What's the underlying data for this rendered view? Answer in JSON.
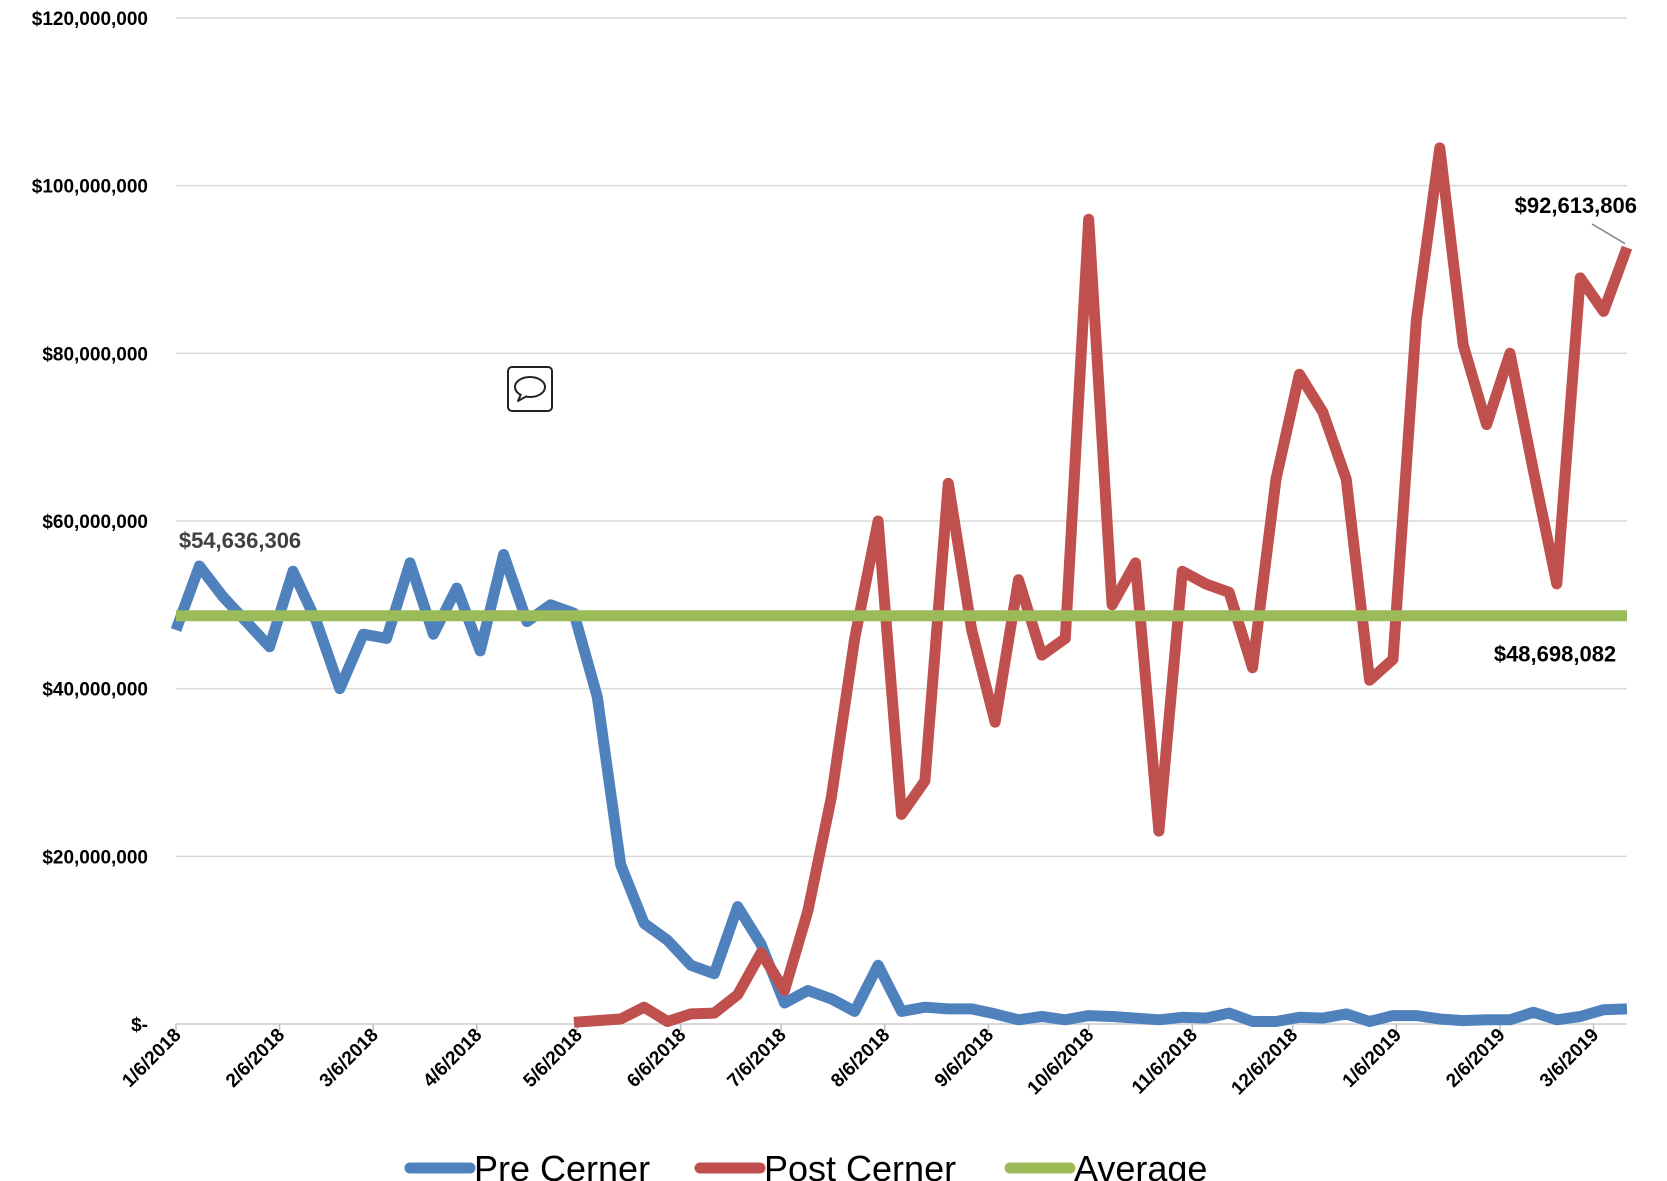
{
  "colors": {
    "pre": "#4F81BD",
    "post": "#C0504D",
    "average": "#9BBB59",
    "grid": "#D9D9D9",
    "annotation_grey": "#404040"
  },
  "icons": {
    "comment": "speech-bubble-icon"
  },
  "chart_data": {
    "type": "line",
    "title": "",
    "xlabel": "",
    "ylabel": "",
    "ylim": [
      0,
      120000000
    ],
    "y_ticks": [
      0,
      20000000,
      40000000,
      60000000,
      80000000,
      100000000,
      120000000
    ],
    "y_tick_labels": [
      "$-",
      "$20,000,000",
      "$40,000,000",
      "$60,000,000",
      "$80,000,000",
      "$100,000,000",
      "$120,000,000"
    ],
    "x_tick_labels": [
      "1/6/2018",
      "2/6/2018",
      "3/6/2018",
      "4/6/2018",
      "5/6/2018",
      "6/6/2018",
      "7/6/2018",
      "8/6/2018",
      "9/6/2018",
      "10/6/2018",
      "11/6/2018",
      "12/6/2018",
      "1/6/2019",
      "2/6/2019",
      "3/6/2019"
    ],
    "grid": "horizontal",
    "legend_position": "bottom",
    "series": [
      {
        "name": "Pre Cerner",
        "color_key": "pre",
        "points": [
          [
            "2018-01-06",
            47000000
          ],
          [
            "2018-01-13",
            54636306
          ],
          [
            "2018-01-20",
            51000000
          ],
          [
            "2018-01-27",
            48000000
          ],
          [
            "2018-02-03",
            45000000
          ],
          [
            "2018-02-10",
            54000000
          ],
          [
            "2018-02-17",
            48000000
          ],
          [
            "2018-02-24",
            40000000
          ],
          [
            "2018-03-03",
            46500000
          ],
          [
            "2018-03-10",
            46000000
          ],
          [
            "2018-03-17",
            55000000
          ],
          [
            "2018-03-24",
            46500000
          ],
          [
            "2018-03-31",
            52000000
          ],
          [
            "2018-04-07",
            44500000
          ],
          [
            "2018-04-14",
            56000000
          ],
          [
            "2018-04-21",
            48000000
          ],
          [
            "2018-04-28",
            50000000
          ],
          [
            "2018-05-05",
            49000000
          ],
          [
            "2018-05-12",
            39000000
          ],
          [
            "2018-05-19",
            19000000
          ],
          [
            "2018-05-26",
            12000000
          ],
          [
            "2018-06-02",
            10000000
          ],
          [
            "2018-06-09",
            7000000
          ],
          [
            "2018-06-16",
            6000000
          ],
          [
            "2018-06-23",
            14000000
          ],
          [
            "2018-06-30",
            9500000
          ],
          [
            "2018-07-07",
            2500000
          ],
          [
            "2018-07-14",
            4000000
          ],
          [
            "2018-07-21",
            3000000
          ],
          [
            "2018-07-28",
            1500000
          ],
          [
            "2018-08-04",
            7000000
          ],
          [
            "2018-08-11",
            1500000
          ],
          [
            "2018-08-18",
            2000000
          ],
          [
            "2018-08-25",
            1800000
          ],
          [
            "2018-09-01",
            1800000
          ],
          [
            "2018-09-08",
            1200000
          ],
          [
            "2018-09-15",
            500000
          ],
          [
            "2018-09-22",
            900000
          ],
          [
            "2018-09-29",
            500000
          ],
          [
            "2018-10-06",
            1000000
          ],
          [
            "2018-10-13",
            900000
          ],
          [
            "2018-10-20",
            700000
          ],
          [
            "2018-10-27",
            500000
          ],
          [
            "2018-11-03",
            800000
          ],
          [
            "2018-11-10",
            700000
          ],
          [
            "2018-11-17",
            1300000
          ],
          [
            "2018-11-24",
            300000
          ],
          [
            "2018-12-01",
            300000
          ],
          [
            "2018-12-08",
            800000
          ],
          [
            "2018-12-15",
            700000
          ],
          [
            "2018-12-22",
            1200000
          ],
          [
            "2018-12-29",
            300000
          ],
          [
            "2019-01-05",
            1000000
          ],
          [
            "2019-01-12",
            1000000
          ],
          [
            "2019-01-19",
            600000
          ],
          [
            "2019-01-26",
            400000
          ],
          [
            "2019-02-02",
            500000
          ],
          [
            "2019-02-09",
            500000
          ],
          [
            "2019-02-16",
            1400000
          ],
          [
            "2019-02-23",
            500000
          ],
          [
            "2019-03-02",
            900000
          ],
          [
            "2019-03-09",
            1700000
          ],
          [
            "2019-03-16",
            1800000
          ]
        ]
      },
      {
        "name": "Post Cerner",
        "color_key": "post",
        "points": [
          [
            "2018-05-05",
            200000
          ],
          [
            "2018-05-12",
            400000
          ],
          [
            "2018-05-19",
            600000
          ],
          [
            "2018-05-26",
            2000000
          ],
          [
            "2018-06-02",
            300000
          ],
          [
            "2018-06-09",
            1200000
          ],
          [
            "2018-06-16",
            1300000
          ],
          [
            "2018-06-23",
            3500000
          ],
          [
            "2018-06-30",
            8500000
          ],
          [
            "2018-07-07",
            4000000
          ],
          [
            "2018-07-14",
            13500000
          ],
          [
            "2018-07-21",
            27000000
          ],
          [
            "2018-07-28",
            46000000
          ],
          [
            "2018-08-04",
            60000000
          ],
          [
            "2018-08-11",
            25000000
          ],
          [
            "2018-08-18",
            29000000
          ],
          [
            "2018-08-25",
            64500000
          ],
          [
            "2018-09-01",
            47000000
          ],
          [
            "2018-09-08",
            36000000
          ],
          [
            "2018-09-15",
            53000000
          ],
          [
            "2018-09-22",
            44000000
          ],
          [
            "2018-09-29",
            46000000
          ],
          [
            "2018-10-06",
            96000000
          ],
          [
            "2018-10-13",
            50000000
          ],
          [
            "2018-10-20",
            55000000
          ],
          [
            "2018-10-27",
            23000000
          ],
          [
            "2018-11-03",
            54000000
          ],
          [
            "2018-11-10",
            52500000
          ],
          [
            "2018-11-17",
            51500000
          ],
          [
            "2018-11-24",
            42500000
          ],
          [
            "2018-12-01",
            65000000
          ],
          [
            "2018-12-08",
            77500000
          ],
          [
            "2018-12-15",
            73000000
          ],
          [
            "2018-12-22",
            65000000
          ],
          [
            "2018-12-29",
            41000000
          ],
          [
            "2019-01-05",
            43500000
          ],
          [
            "2019-01-12",
            84000000
          ],
          [
            "2019-01-19",
            104500000
          ],
          [
            "2019-01-26",
            81000000
          ],
          [
            "2019-02-02",
            71500000
          ],
          [
            "2019-02-09",
            80000000
          ],
          [
            "2019-02-16",
            66000000
          ],
          [
            "2019-02-23",
            52500000
          ],
          [
            "2019-03-02",
            89000000
          ],
          [
            "2019-03-09",
            85000000
          ],
          [
            "2019-03-16",
            92613806
          ]
        ]
      },
      {
        "name": "Average",
        "color_key": "average",
        "points": [
          [
            "2018-01-06",
            48698082
          ],
          [
            "2019-03-16",
            48698082
          ]
        ]
      }
    ],
    "annotations": [
      {
        "text": "$54,636,306",
        "series": "Pre Cerner",
        "point": [
          "2018-01-13",
          54636306
        ]
      },
      {
        "text": "$92,613,806",
        "series": "Post Cerner",
        "point": [
          "2019-03-16",
          92613806
        ]
      },
      {
        "text": "$48,698,082",
        "series": "Average",
        "point": [
          "2019-03-16",
          48698082
        ]
      }
    ]
  }
}
